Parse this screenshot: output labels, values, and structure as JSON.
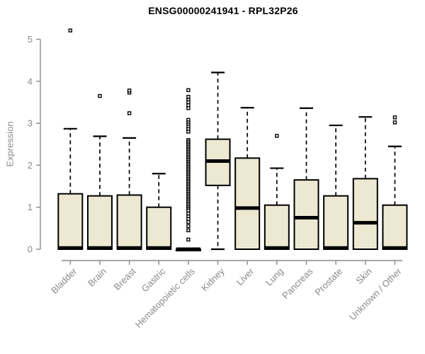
{
  "colors": {
    "box_fill": "#EDE8D1",
    "box_border": "#000000",
    "median": "#000000",
    "whisker": "#000000",
    "axis": "#8a8a8a",
    "tick_label": "#8a8a8a",
    "title": "#000000",
    "background": "#ffffff"
  },
  "chart_data": {
    "type": "boxplot",
    "title": "ENSG00000241941 - RPL32P26",
    "xlabel": "",
    "ylabel": "Expression",
    "ylim": [
      0,
      5
    ],
    "yticks": [
      "0",
      "1",
      "2",
      "3",
      "4",
      "5"
    ],
    "grid": false,
    "legend": false,
    "categories": [
      "Bladder",
      "Brain",
      "Breast",
      "Gastric",
      "Hematopoietic cells",
      "Kidney",
      "Liver",
      "Lung",
      "Pancreas",
      "Prostate",
      "Skin",
      "Unknown / Other"
    ],
    "series": [
      {
        "name": "Bladder",
        "low": 0,
        "q1": 0,
        "median": 0.03,
        "q3": 1.32,
        "high": 2.87,
        "outliers": [
          5.21
        ]
      },
      {
        "name": "Brain",
        "low": 0,
        "q1": 0,
        "median": 0.03,
        "q3": 1.27,
        "high": 2.69,
        "outliers": [
          3.65
        ]
      },
      {
        "name": "Breast",
        "low": 0,
        "q1": 0,
        "median": 0.03,
        "q3": 1.29,
        "high": 2.65,
        "outliers": [
          3.24,
          3.73,
          3.78
        ]
      },
      {
        "name": "Gastric",
        "low": 0,
        "q1": 0,
        "median": 0.03,
        "q3": 1.0,
        "high": 1.8,
        "outliers": []
      },
      {
        "name": "Hematopoietic cells",
        "low": 0,
        "q1": 0,
        "median": 0,
        "q3": 0,
        "high": 0,
        "outliers": [
          3.79,
          3.63,
          3.56,
          3.5,
          3.43,
          3.36,
          3.08,
          3.02,
          2.97,
          2.92,
          2.86,
          2.8,
          2.6,
          2.56,
          2.52,
          2.48,
          2.44,
          2.4,
          2.36,
          2.32,
          2.28,
          2.24,
          2.2,
          2.16,
          2.12,
          2.08,
          2.04,
          2.0,
          1.96,
          1.92,
          1.88,
          1.84,
          1.8,
          1.76,
          1.72,
          1.68,
          1.64,
          1.6,
          1.56,
          1.52,
          1.48,
          1.44,
          1.4,
          1.36,
          1.32,
          1.28,
          1.24,
          1.2,
          1.16,
          1.12,
          1.08,
          1.04,
          1.0,
          0.96,
          0.92,
          0.85,
          0.78,
          0.72,
          0.65,
          0.55,
          0.45,
          0.23
        ]
      },
      {
        "name": "Kidney",
        "low": 0,
        "q1": 1.52,
        "median": 2.1,
        "q3": 2.62,
        "high": 4.21,
        "outliers": []
      },
      {
        "name": "Liver",
        "low": 0,
        "q1": 0,
        "median": 0.98,
        "q3": 2.17,
        "high": 3.37,
        "outliers": []
      },
      {
        "name": "Lung",
        "low": 0,
        "q1": 0,
        "median": 0.03,
        "q3": 1.05,
        "high": 1.93,
        "outliers": [
          2.7
        ]
      },
      {
        "name": "Pancreas",
        "low": 0,
        "q1": 0,
        "median": 0.75,
        "q3": 1.65,
        "high": 3.36,
        "outliers": []
      },
      {
        "name": "Prostate",
        "low": 0,
        "q1": 0,
        "median": 0.03,
        "q3": 1.27,
        "high": 2.95,
        "outliers": []
      },
      {
        "name": "Skin",
        "low": 0,
        "q1": 0,
        "median": 0.63,
        "q3": 1.68,
        "high": 3.15,
        "outliers": []
      },
      {
        "name": "Unknown / Other",
        "low": 0,
        "q1": 0,
        "median": 0.03,
        "q3": 1.05,
        "high": 2.45,
        "outliers": [
          3.02,
          3.14
        ]
      }
    ]
  }
}
